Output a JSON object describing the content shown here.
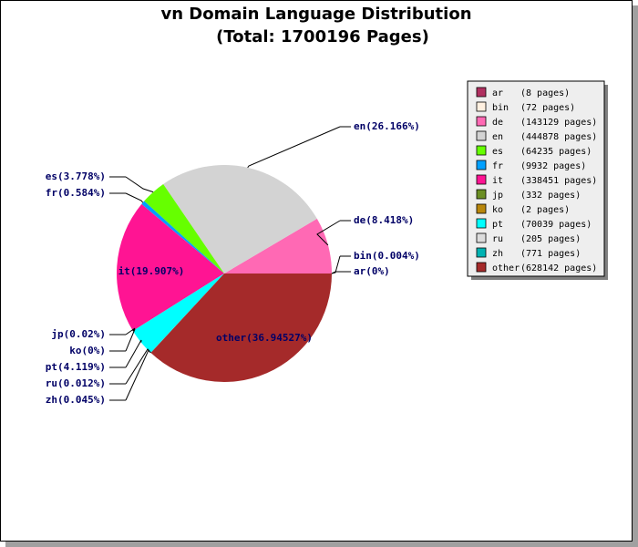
{
  "chart_data": {
    "type": "pie",
    "title": "vn Domain Language Distribution",
    "subtitle": "(Total: 1700196 Pages)",
    "slices": [
      {
        "key": "ar",
        "pages": 8,
        "percent_label": "ar(0%)",
        "legend_count": "(8 pages)",
        "color": "#b03060"
      },
      {
        "key": "bin",
        "pages": 72,
        "percent_label": "bin(0.004%)",
        "legend_count": "(72 pages)",
        "color": "#fff0e0"
      },
      {
        "key": "de",
        "pages": 143129,
        "percent_label": "de(8.418%)",
        "legend_count": "(143129 pages)",
        "color": "#ff69b4"
      },
      {
        "key": "en",
        "pages": 444878,
        "percent_label": "en(26.166%)",
        "legend_count": "(444878 pages)",
        "color": "#d3d3d3"
      },
      {
        "key": "es",
        "pages": 64235,
        "percent_label": "es(3.778%)",
        "legend_count": "(64235 pages)",
        "color": "#66ff00"
      },
      {
        "key": "fr",
        "pages": 9932,
        "percent_label": "fr(0.584%)",
        "legend_count": "(9932 pages)",
        "color": "#00a0ff"
      },
      {
        "key": "it",
        "pages": 338451,
        "percent_label": "it(19.907%)",
        "legend_count": "(338451 pages)",
        "color": "#ff1493"
      },
      {
        "key": "jp",
        "pages": 332,
        "percent_label": "jp(0.02%)",
        "legend_count": "(332 pages)",
        "color": "#6b8e23"
      },
      {
        "key": "ko",
        "pages": 2,
        "percent_label": "ko(0%)",
        "legend_count": "(2 pages)",
        "color": "#b8860b"
      },
      {
        "key": "pt",
        "pages": 70039,
        "percent_label": "pt(4.119%)",
        "legend_count": "(70039 pages)",
        "color": "#00ffff"
      },
      {
        "key": "ru",
        "pages": 205,
        "percent_label": "ru(0.012%)",
        "legend_count": "(205 pages)",
        "color": "#dcdcdc"
      },
      {
        "key": "zh",
        "pages": 771,
        "percent_label": "zh(0.045%)",
        "legend_count": "(771 pages)",
        "color": "#00b2b2"
      },
      {
        "key": "other",
        "pages": 628142,
        "percent_label": "other(36.94527%)",
        "legend_count": "(628142 pages)",
        "color": "#a52a2a"
      }
    ],
    "legend_placement": "right"
  }
}
